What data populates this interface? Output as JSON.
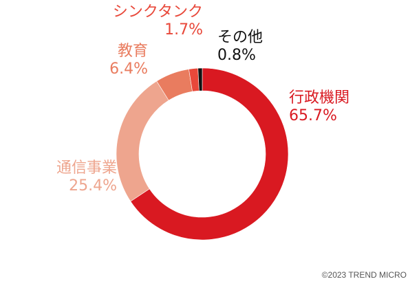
{
  "chart_data": {
    "type": "pie",
    "donut": true,
    "start_angle_deg": 0,
    "direction": "clockwise",
    "slices": [
      {
        "label": "行政機関",
        "value_text": "65.7%",
        "value": 65.7,
        "color": "#d91921",
        "label_color": "#d91921"
      },
      {
        "label": "通信事業",
        "value_text": "25.4%",
        "value": 25.4,
        "color": "#eea58e",
        "label_color": "#eea58e"
      },
      {
        "label": "教育",
        "value_text": "6.4%",
        "value": 6.4,
        "color": "#e97c5f",
        "label_color": "#e97c5f"
      },
      {
        "label": "シンクタンク",
        "value_text": "1.7%",
        "value": 1.7,
        "color": "#e8483a",
        "label_color": "#e8483a"
      },
      {
        "label": "その他",
        "value_text": "0.8%",
        "value": 0.8,
        "color": "#111111",
        "label_color": "#111111"
      }
    ]
  },
  "footer": {
    "credit": "©2023 TREND MICRO"
  }
}
